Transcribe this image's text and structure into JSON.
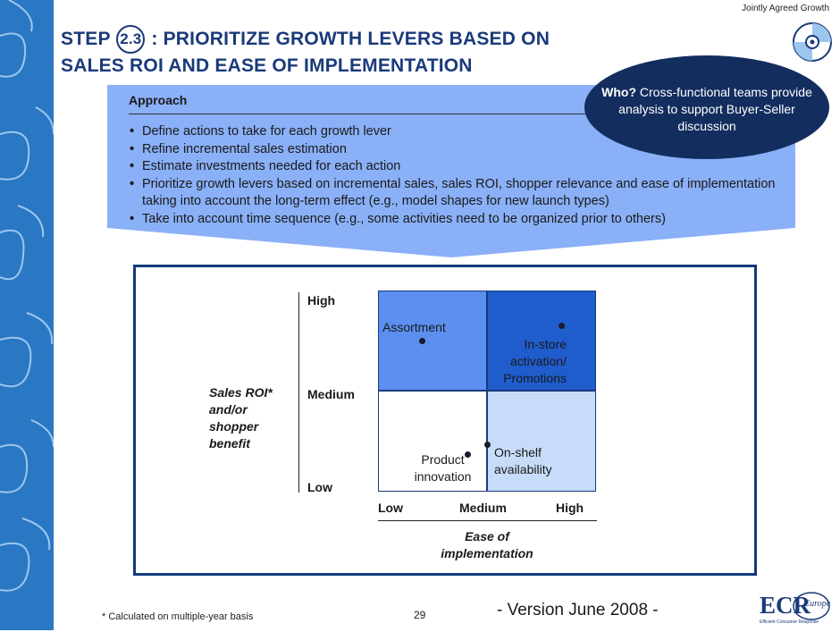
{
  "header": {
    "tag": "Jointly Agreed Growth",
    "title_prefix": "STEP",
    "step_number": "2.3",
    "title_suffix": ": PRIORITIZE GROWTH LEVERS BASED ON",
    "title_line2": "SALES ROI AND EASE OF IMPLEMENTATION"
  },
  "approach": {
    "title": "Approach",
    "bullets": [
      "Define actions to take for each growth lever",
      "Refine incremental sales estimation",
      "Estimate investments needed for each action",
      "Prioritize growth levers based on incremental sales, sales ROI, shopper relevance and ease of implementation taking into account the long-term effect (e.g., model shapes for new launch types)",
      "Take into account time sequence (e.g., some activities need to be organized prior to others)"
    ]
  },
  "who_callout": {
    "bold": "Who?",
    "text": "Cross-functional teams provide analysis to support Buyer-Seller discussion"
  },
  "matrix": {
    "y_ticks": [
      "High",
      "Medium",
      "Low"
    ],
    "x_ticks": [
      "Low",
      "Medium",
      "High"
    ],
    "y_label": "Sales ROI* and/or shopper benefit",
    "x_label": "Ease of implementation",
    "items": {
      "assortment": "Assortment",
      "in_store": "In-store activation/ Promotions",
      "product_innovation": "Product innovation",
      "on_shelf": "On-shelf availability"
    },
    "colors": {
      "top_left": "#5b8ff0",
      "top_right": "#1f5ccc",
      "bottom_left": "#ffffff",
      "bottom_right": "#c6dcf8"
    }
  },
  "footer": {
    "footnote": "* Calculated on multiple-year basis",
    "page_number": "29",
    "version": "- Version June 2008 -",
    "logo_text": "ECR",
    "logo_sub": "Europe",
    "logo_tagline": "Efficient Consumer Response"
  },
  "icons": [
    "puzzle-strip-decoration",
    "cd-icon",
    "ecr-logo"
  ]
}
